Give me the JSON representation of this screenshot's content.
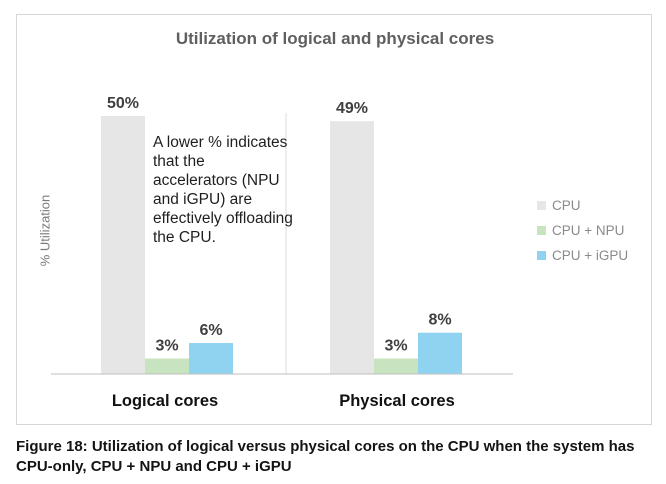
{
  "chart_data": {
    "type": "bar",
    "title": "Utilization of logical and physical cores",
    "xlabel": "",
    "ylabel": "% Utilization",
    "categories": [
      "Logical cores",
      "Physical cores"
    ],
    "series": [
      {
        "name": "CPU",
        "color": "#e6e6e6",
        "values": [
          50,
          49
        ],
        "labels": [
          "50%",
          "49%"
        ]
      },
      {
        "name": "CPU + NPU",
        "color": "#c8e3bf",
        "values": [
          3,
          3
        ],
        "labels": [
          "3%",
          "3%"
        ]
      },
      {
        "name": "CPU + iGPU",
        "color": "#8fd3f0",
        "values": [
          6,
          8
        ],
        "labels": [
          "6%",
          "8%"
        ]
      }
    ],
    "ylim": [
      0,
      50
    ],
    "grid": false,
    "legend_position": "right",
    "annotation": "A lower % indicates that the accelerators (NPU and iGPU) are effectively offloading the CPU."
  },
  "caption": "Figure 18: Utilization of logical versus physical cores on the CPU when the system has CPU-only, CPU + NPU and CPU + iGPU"
}
